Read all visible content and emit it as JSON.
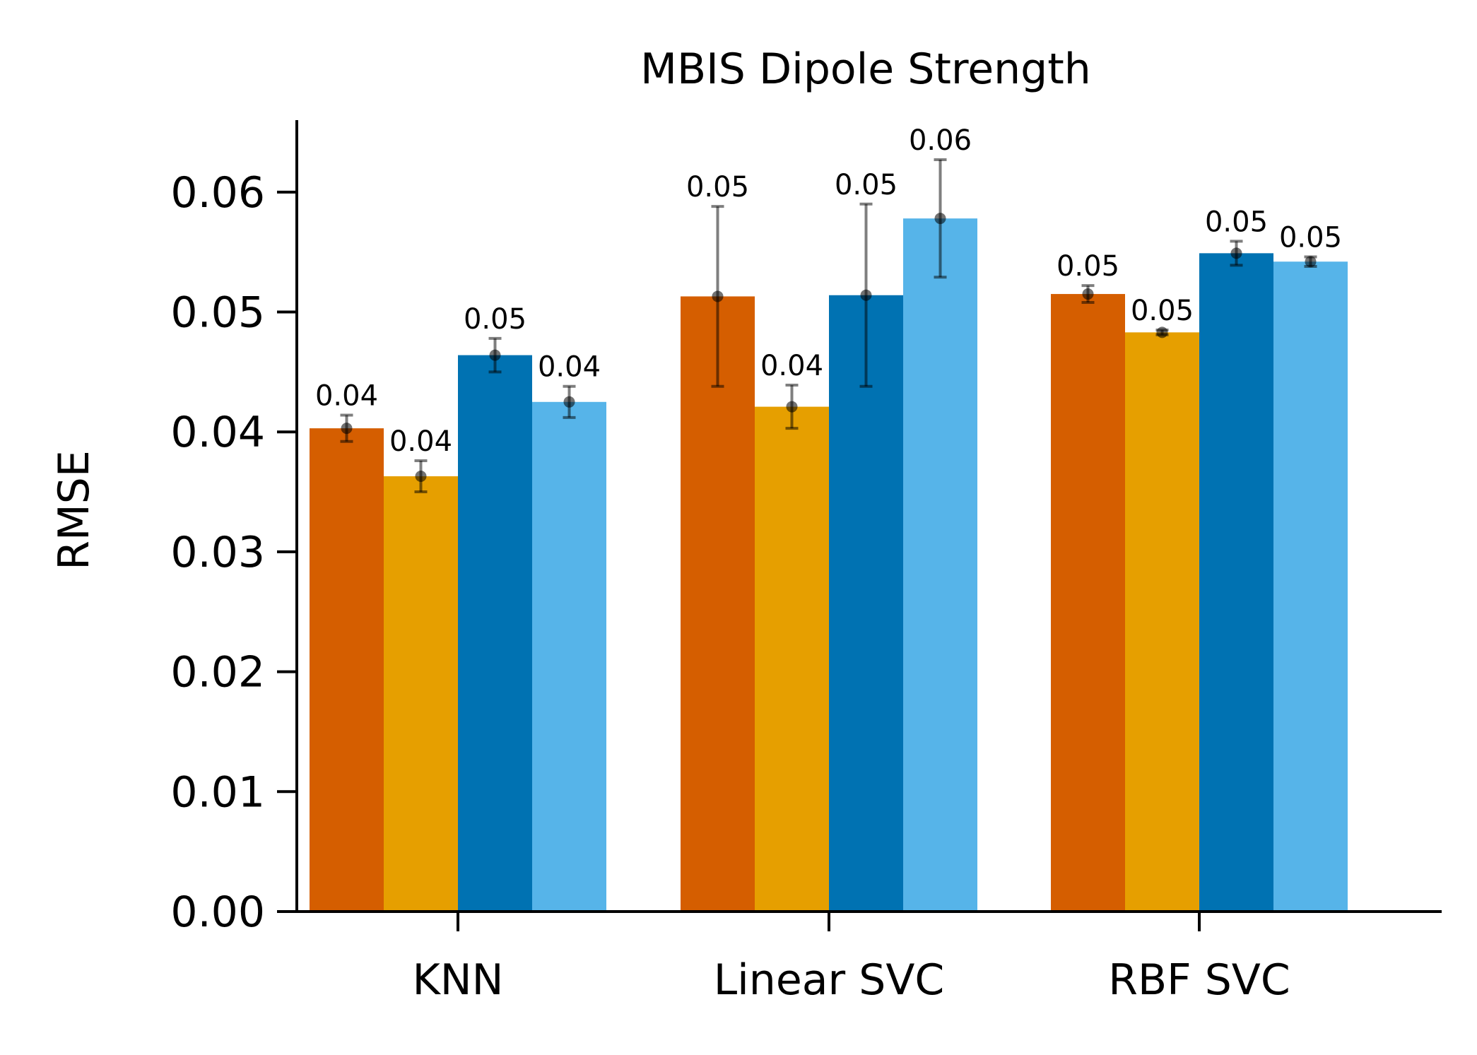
{
  "chart_data": {
    "type": "bar",
    "title": "MBIS Dipole Strength",
    "xlabel": "",
    "ylabel": "RMSE",
    "categories": [
      "KNN",
      "Linear SVC",
      "RBF SVC"
    ],
    "ylim": [
      0,
      0.066
    ],
    "yticks": [
      "0.00",
      "0.01",
      "0.02",
      "0.03",
      "0.04",
      "0.05",
      "0.06"
    ],
    "grid": false,
    "legend": "none",
    "series": [
      {
        "color": "#d55e00",
        "values": [
          0.0403,
          0.0513,
          0.0515
        ],
        "errors": [
          0.0011,
          0.0075,
          0.0007
        ],
        "labels": [
          "0.04",
          "0.05",
          "0.05"
        ]
      },
      {
        "color": "#e69f00",
        "values": [
          0.0363,
          0.0421,
          0.0483
        ],
        "errors": [
          0.0013,
          0.0018,
          0.0002
        ],
        "labels": [
          "0.04",
          "0.04",
          "0.05"
        ]
      },
      {
        "color": "#0072b2",
        "values": [
          0.0464,
          0.0514,
          0.0549
        ],
        "errors": [
          0.0014,
          0.0076,
          0.001
        ],
        "labels": [
          "0.05",
          "0.05",
          "0.05"
        ]
      },
      {
        "color": "#56b4e9",
        "values": [
          0.0425,
          0.0578,
          0.0542
        ],
        "errors": [
          0.0013,
          0.0049,
          0.0004
        ],
        "labels": [
          "0.04",
          "0.06",
          "0.05"
        ]
      }
    ]
  }
}
